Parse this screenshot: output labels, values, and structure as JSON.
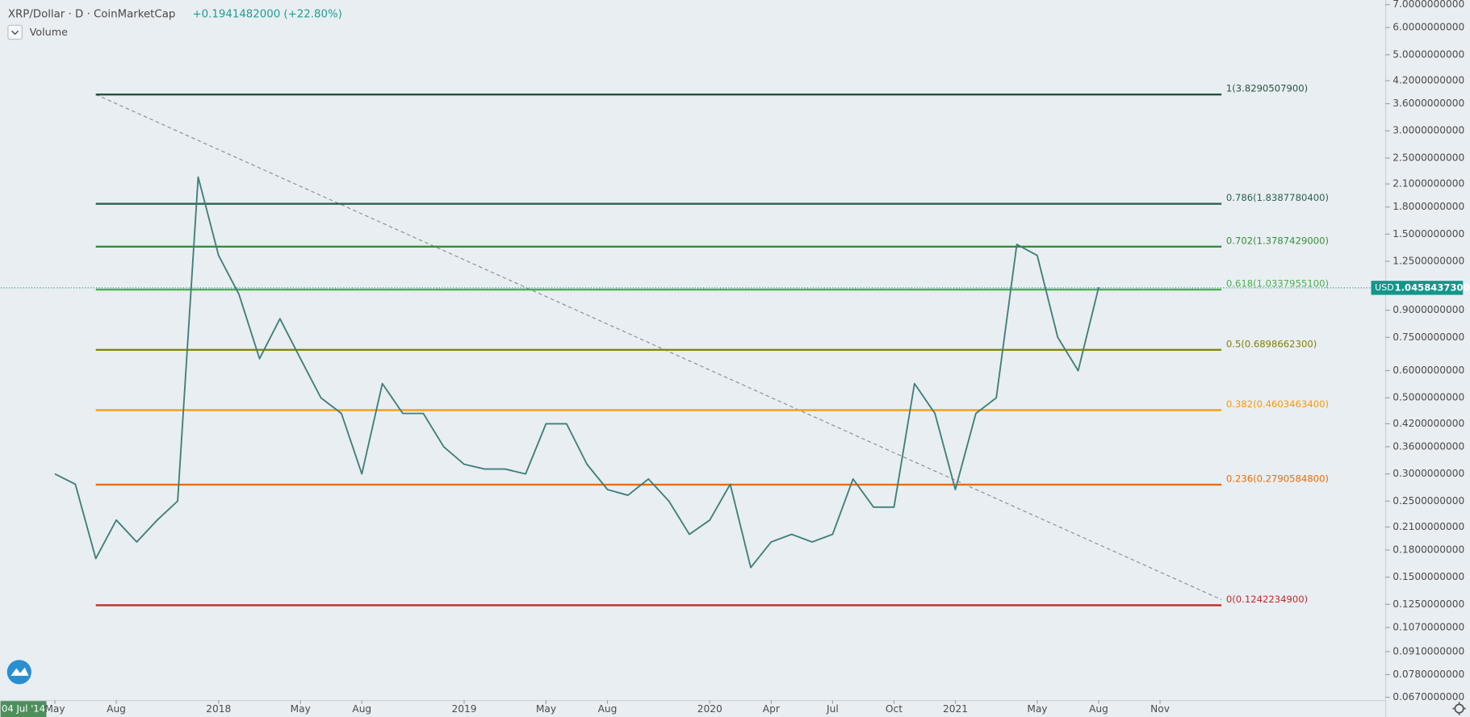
{
  "chart_data": {
    "type": "line",
    "title": "XRP/Dollar · D · CoinMarketCap",
    "subtitle": "+0.1941482000 (+22.80%)",
    "legend_item": "Volume",
    "log_scale": true,
    "grid": false,
    "color": "#3f7f79",
    "x": [
      "2017-05",
      "2017-06",
      "2017-07",
      "2017-08",
      "2017-09",
      "2017-10",
      "2017-11",
      "2017-12",
      "2018-01",
      "2018-02",
      "2018-03",
      "2018-04",
      "2018-05",
      "2018-06",
      "2018-07",
      "2018-08",
      "2018-09",
      "2018-10",
      "2018-11",
      "2018-12",
      "2019-01",
      "2019-02",
      "2019-03",
      "2019-04",
      "2019-05",
      "2019-06",
      "2019-07",
      "2019-08",
      "2019-09",
      "2019-10",
      "2019-11",
      "2019-12",
      "2020-01",
      "2020-02",
      "2020-03",
      "2020-04",
      "2020-05",
      "2020-06",
      "2020-07",
      "2020-08",
      "2020-09",
      "2020-10",
      "2020-11",
      "2020-12",
      "2021-01",
      "2021-02",
      "2021-03",
      "2021-04",
      "2021-05",
      "2021-06",
      "2021-07",
      "2021-08"
    ],
    "values": [
      0.3,
      0.28,
      0.17,
      0.22,
      0.19,
      0.22,
      0.25,
      2.2,
      1.3,
      1.0,
      0.65,
      0.85,
      0.65,
      0.5,
      0.45,
      0.3,
      0.55,
      0.45,
      0.45,
      0.36,
      0.32,
      0.31,
      0.31,
      0.3,
      0.42,
      0.42,
      0.32,
      0.27,
      0.26,
      0.29,
      0.25,
      0.2,
      0.22,
      0.28,
      0.16,
      0.19,
      0.2,
      0.19,
      0.2,
      0.29,
      0.24,
      0.24,
      0.55,
      0.45,
      0.27,
      0.45,
      0.5,
      1.4,
      1.3,
      0.75,
      0.6,
      1.05
    ],
    "xlim": [
      "2017-02",
      "2022-10"
    ],
    "xticks": [
      {
        "value": "2017-05",
        "label": "May"
      },
      {
        "value": "2017-08",
        "label": "Aug"
      },
      {
        "value": "2018-01",
        "label": "2018"
      },
      {
        "value": "2018-05",
        "label": "May"
      },
      {
        "value": "2018-08",
        "label": "Aug"
      },
      {
        "value": "2019-01",
        "label": "2019"
      },
      {
        "value": "2019-05",
        "label": "May"
      },
      {
        "value": "2019-08",
        "label": "Aug"
      },
      {
        "value": "2020-01",
        "label": "2020"
      },
      {
        "value": "2020-04",
        "label": "Apr"
      },
      {
        "value": "2020-07",
        "label": "Jul"
      },
      {
        "value": "2020-10",
        "label": "Oct"
      },
      {
        "value": "2021-01",
        "label": "2021"
      },
      {
        "value": "2021-05",
        "label": "May"
      },
      {
        "value": "2021-08",
        "label": "Aug"
      },
      {
        "value": "2021-11",
        "label": "Nov"
      }
    ],
    "ylim": [
      0.0657,
      7.22
    ],
    "yticks": [
      {
        "value": 7,
        "label": "7.0000000000"
      },
      {
        "value": 6,
        "label": "6.0000000000"
      },
      {
        "value": 5,
        "label": "5.0000000000"
      },
      {
        "value": 4.2,
        "label": "4.2000000000"
      },
      {
        "value": 3.6,
        "label": "3.6000000000"
      },
      {
        "value": 3,
        "label": "3.0000000000"
      },
      {
        "value": 2.5,
        "label": "2.5000000000"
      },
      {
        "value": 2.1,
        "label": "2.1000000000"
      },
      {
        "value": 1.8,
        "label": "1.8000000000"
      },
      {
        "value": 1.5,
        "label": "1.5000000000"
      },
      {
        "value": 1.25,
        "label": "1.2500000000"
      },
      {
        "value": 0.9,
        "label": "0.9000000000"
      },
      {
        "value": 0.75,
        "label": "0.7500000000"
      },
      {
        "value": 0.6,
        "label": "0.6000000000"
      },
      {
        "value": 0.5,
        "label": "0.5000000000"
      },
      {
        "value": 0.42,
        "label": "0.4200000000"
      },
      {
        "value": 0.36,
        "label": "0.3600000000"
      },
      {
        "value": 0.3,
        "label": "0.3000000000"
      },
      {
        "value": 0.25,
        "label": "0.2500000000"
      },
      {
        "value": 0.21,
        "label": "0.2100000000"
      },
      {
        "value": 0.18,
        "label": "0.1800000000"
      },
      {
        "value": 0.15,
        "label": "0.1500000000"
      },
      {
        "value": 0.125,
        "label": "0.1250000000"
      },
      {
        "value": 0.107,
        "label": "0.1070000000"
      },
      {
        "value": 0.091,
        "label": "0.0910000000"
      },
      {
        "value": 0.078,
        "label": "0.0780000000"
      },
      {
        "value": 0.067,
        "label": "0.0670000000"
      }
    ],
    "last_price": {
      "value": 1.04584373,
      "label": "1.0458437300"
    },
    "currency": "USD",
    "fib_start": "2017-07",
    "fib_end": "2022-02",
    "fib_levels": [
      {
        "price": 3.82905079,
        "label": "1(3.8290507900)",
        "color": "#22533f"
      },
      {
        "price": 1.83877804,
        "label": "0.786(1.8387780400)",
        "color": "#2b6150"
      },
      {
        "price": 1.3787429,
        "label": "0.702(1.3787429000)",
        "color": "#388e3c"
      },
      {
        "price": 1.03379551,
        "label": "0.618(1.0337955100)",
        "color": "#4caf50"
      },
      {
        "price": 0.68986623,
        "label": "0.5(0.6898662300)",
        "color": "#808000"
      },
      {
        "price": 0.46034634,
        "label": "0.382(0.4603463400)",
        "color": "#ff9800"
      },
      {
        "price": 0.27905848,
        "label": "0.236(0.2790584800)",
        "color": "#ef6c00"
      },
      {
        "price": 0.12422349,
        "label": "0(0.1242234900)",
        "color": "#c62828"
      }
    ],
    "trend_line": {
      "x": [
        "2017-07",
        "2022-02"
      ],
      "y": [
        3.82905079,
        0.129
      ]
    },
    "crosshair_label": "04 Jul '14"
  }
}
